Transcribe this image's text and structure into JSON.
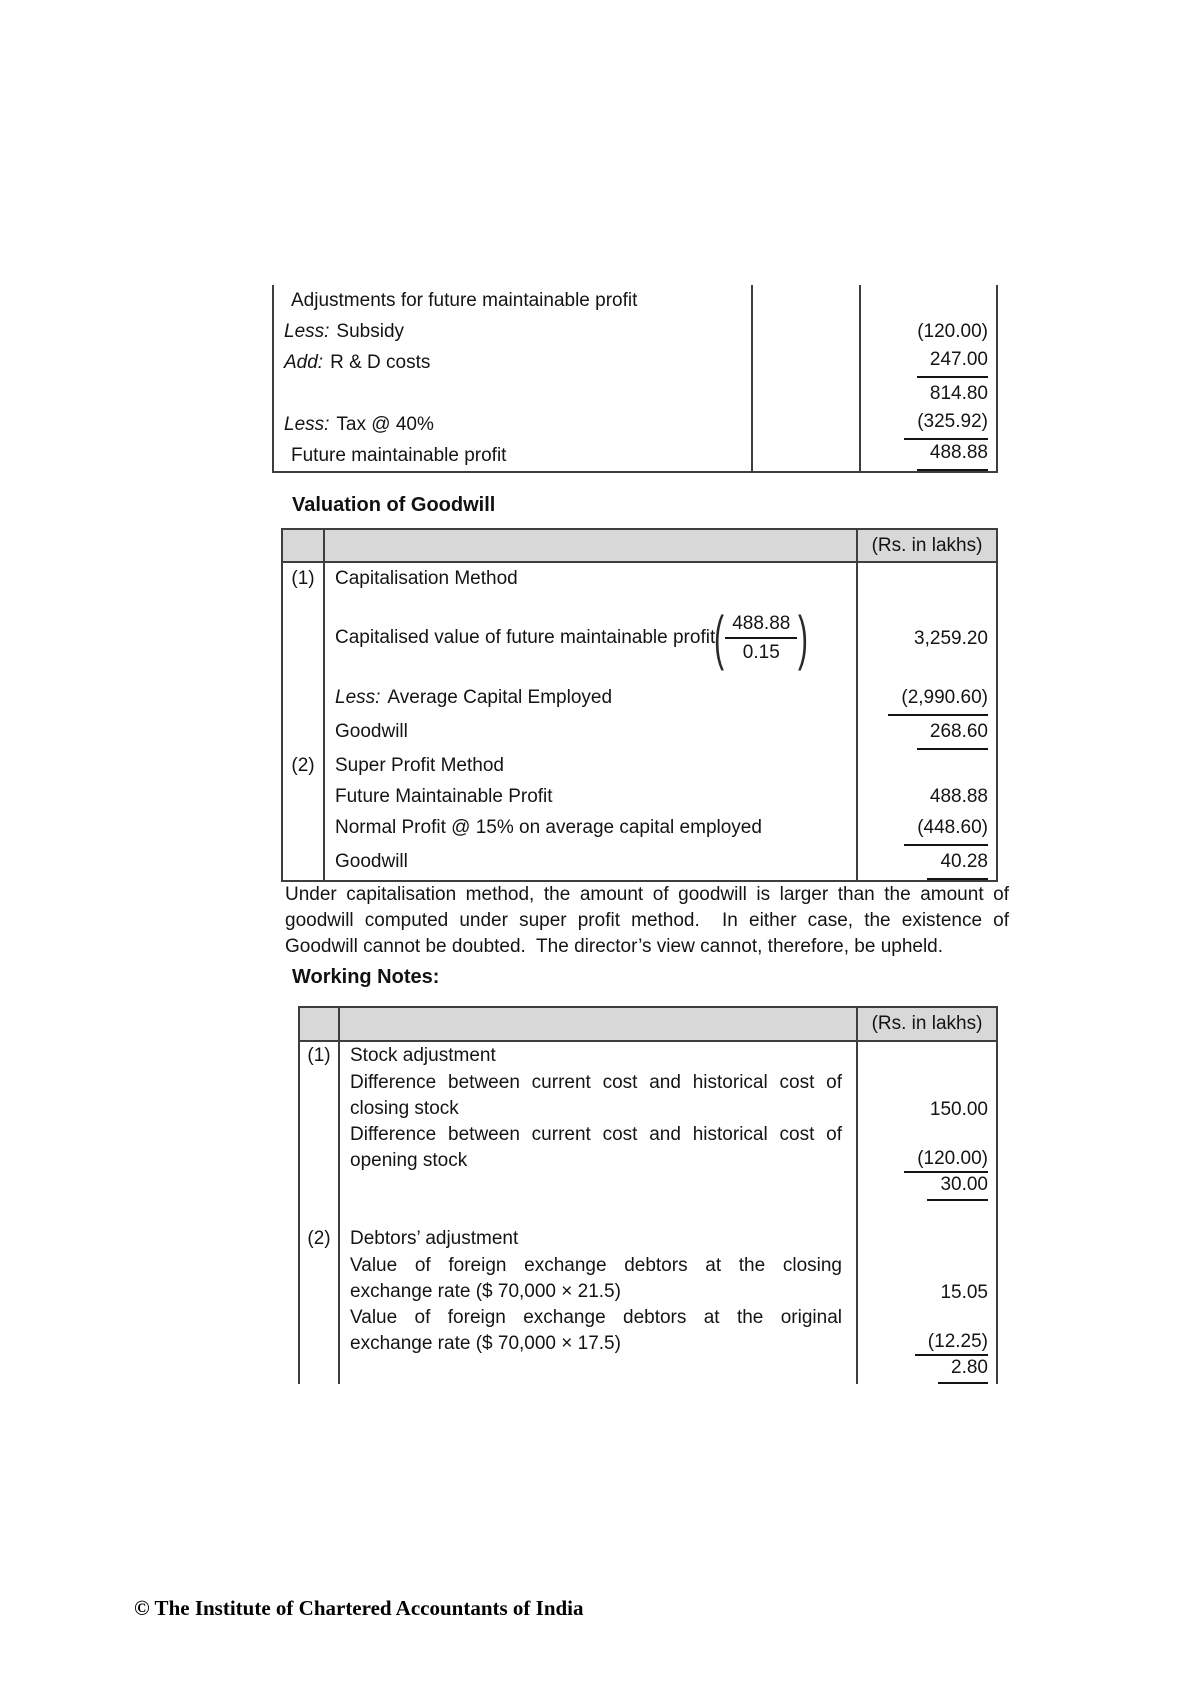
{
  "t1": {
    "rows": [
      {
        "pre": "",
        "label": "Adjustments for future maintainable profit",
        "val": ""
      },
      {
        "pre": "Less:",
        "label": "Subsidy",
        "val": "(120.00)"
      },
      {
        "pre": "Add:",
        "label": "R & D costs",
        "val": "247.00"
      },
      {
        "pre": "",
        "label": "",
        "val": "814.80"
      },
      {
        "pre": "Less:",
        "label": "Tax @ 40%",
        "val": "(325.92)"
      },
      {
        "pre": "",
        "label": "Future maintainable profit",
        "val": "488.88"
      }
    ]
  },
  "valuation": {
    "title": "Valuation of Goodwill",
    "unit_header": "(Rs. in lakhs)",
    "rows": [
      {
        "num": "(1)",
        "pre": "",
        "label": "Capitalisation Method",
        "val": ""
      },
      {
        "num": "",
        "pre": "",
        "label": "Capitalised value of future maintainable profit",
        "frac_open": "(",
        "frac_num": "488.88",
        "frac_den": "0.15",
        "frac_close": ")",
        "val": "3,259.20"
      },
      {
        "num": "",
        "pre": "Less:",
        "label": "Average Capital Employed",
        "val": "(2,990.60)"
      },
      {
        "num": "",
        "pre": "",
        "label": "Goodwill",
        "val": "268.60"
      },
      {
        "num": "(2)",
        "pre": "",
        "label": "Super Profit Method",
        "val": ""
      },
      {
        "num": "",
        "pre": "",
        "label": "Future Maintainable Profit",
        "val": "488.88"
      },
      {
        "num": "",
        "pre": "",
        "label": "Normal Profit @ 15% on average capital employed",
        "val": "(448.60)"
      },
      {
        "num": "",
        "pre": "",
        "label": "Goodwill",
        "val": "40.28"
      }
    ]
  },
  "commentary": "Under capitalisation method, the amount of goodwill is larger than the amount of goodwill computed under super profit method.  In either case, the existence of Goodwill cannot be doubted.  The director’s view cannot, therefore, be upheld.",
  "working": {
    "title": "Working Notes:",
    "unit_header": "(Rs. in lakhs)",
    "rows": [
      {
        "num": "(1)",
        "label": "Stock adjustment",
        "val": ""
      },
      {
        "num": "",
        "label": "Difference between current cost and historical cost of closing stock",
        "val": "150.00"
      },
      {
        "num": "",
        "label": "Difference between current cost and historical cost of opening stock",
        "val": "(120.00)"
      },
      {
        "num": "",
        "label": "",
        "val": "30.00"
      },
      {
        "num": "(2)",
        "label": "Debtors’ adjustment",
        "val": ""
      },
      {
        "num": "",
        "label": "Value of foreign exchange debtors at the closing exchange rate ($ 70,000 × 21.5)",
        "val": "15.05"
      },
      {
        "num": "",
        "label": "Value of foreign exchange debtors at the original exchange rate ($ 70,000 × 17.5)",
        "val": "(12.25)"
      },
      {
        "num": "",
        "label": "",
        "val": "2.80"
      }
    ]
  },
  "footer": {
    "text": "© The Institute of Chartered Accountants of India"
  }
}
